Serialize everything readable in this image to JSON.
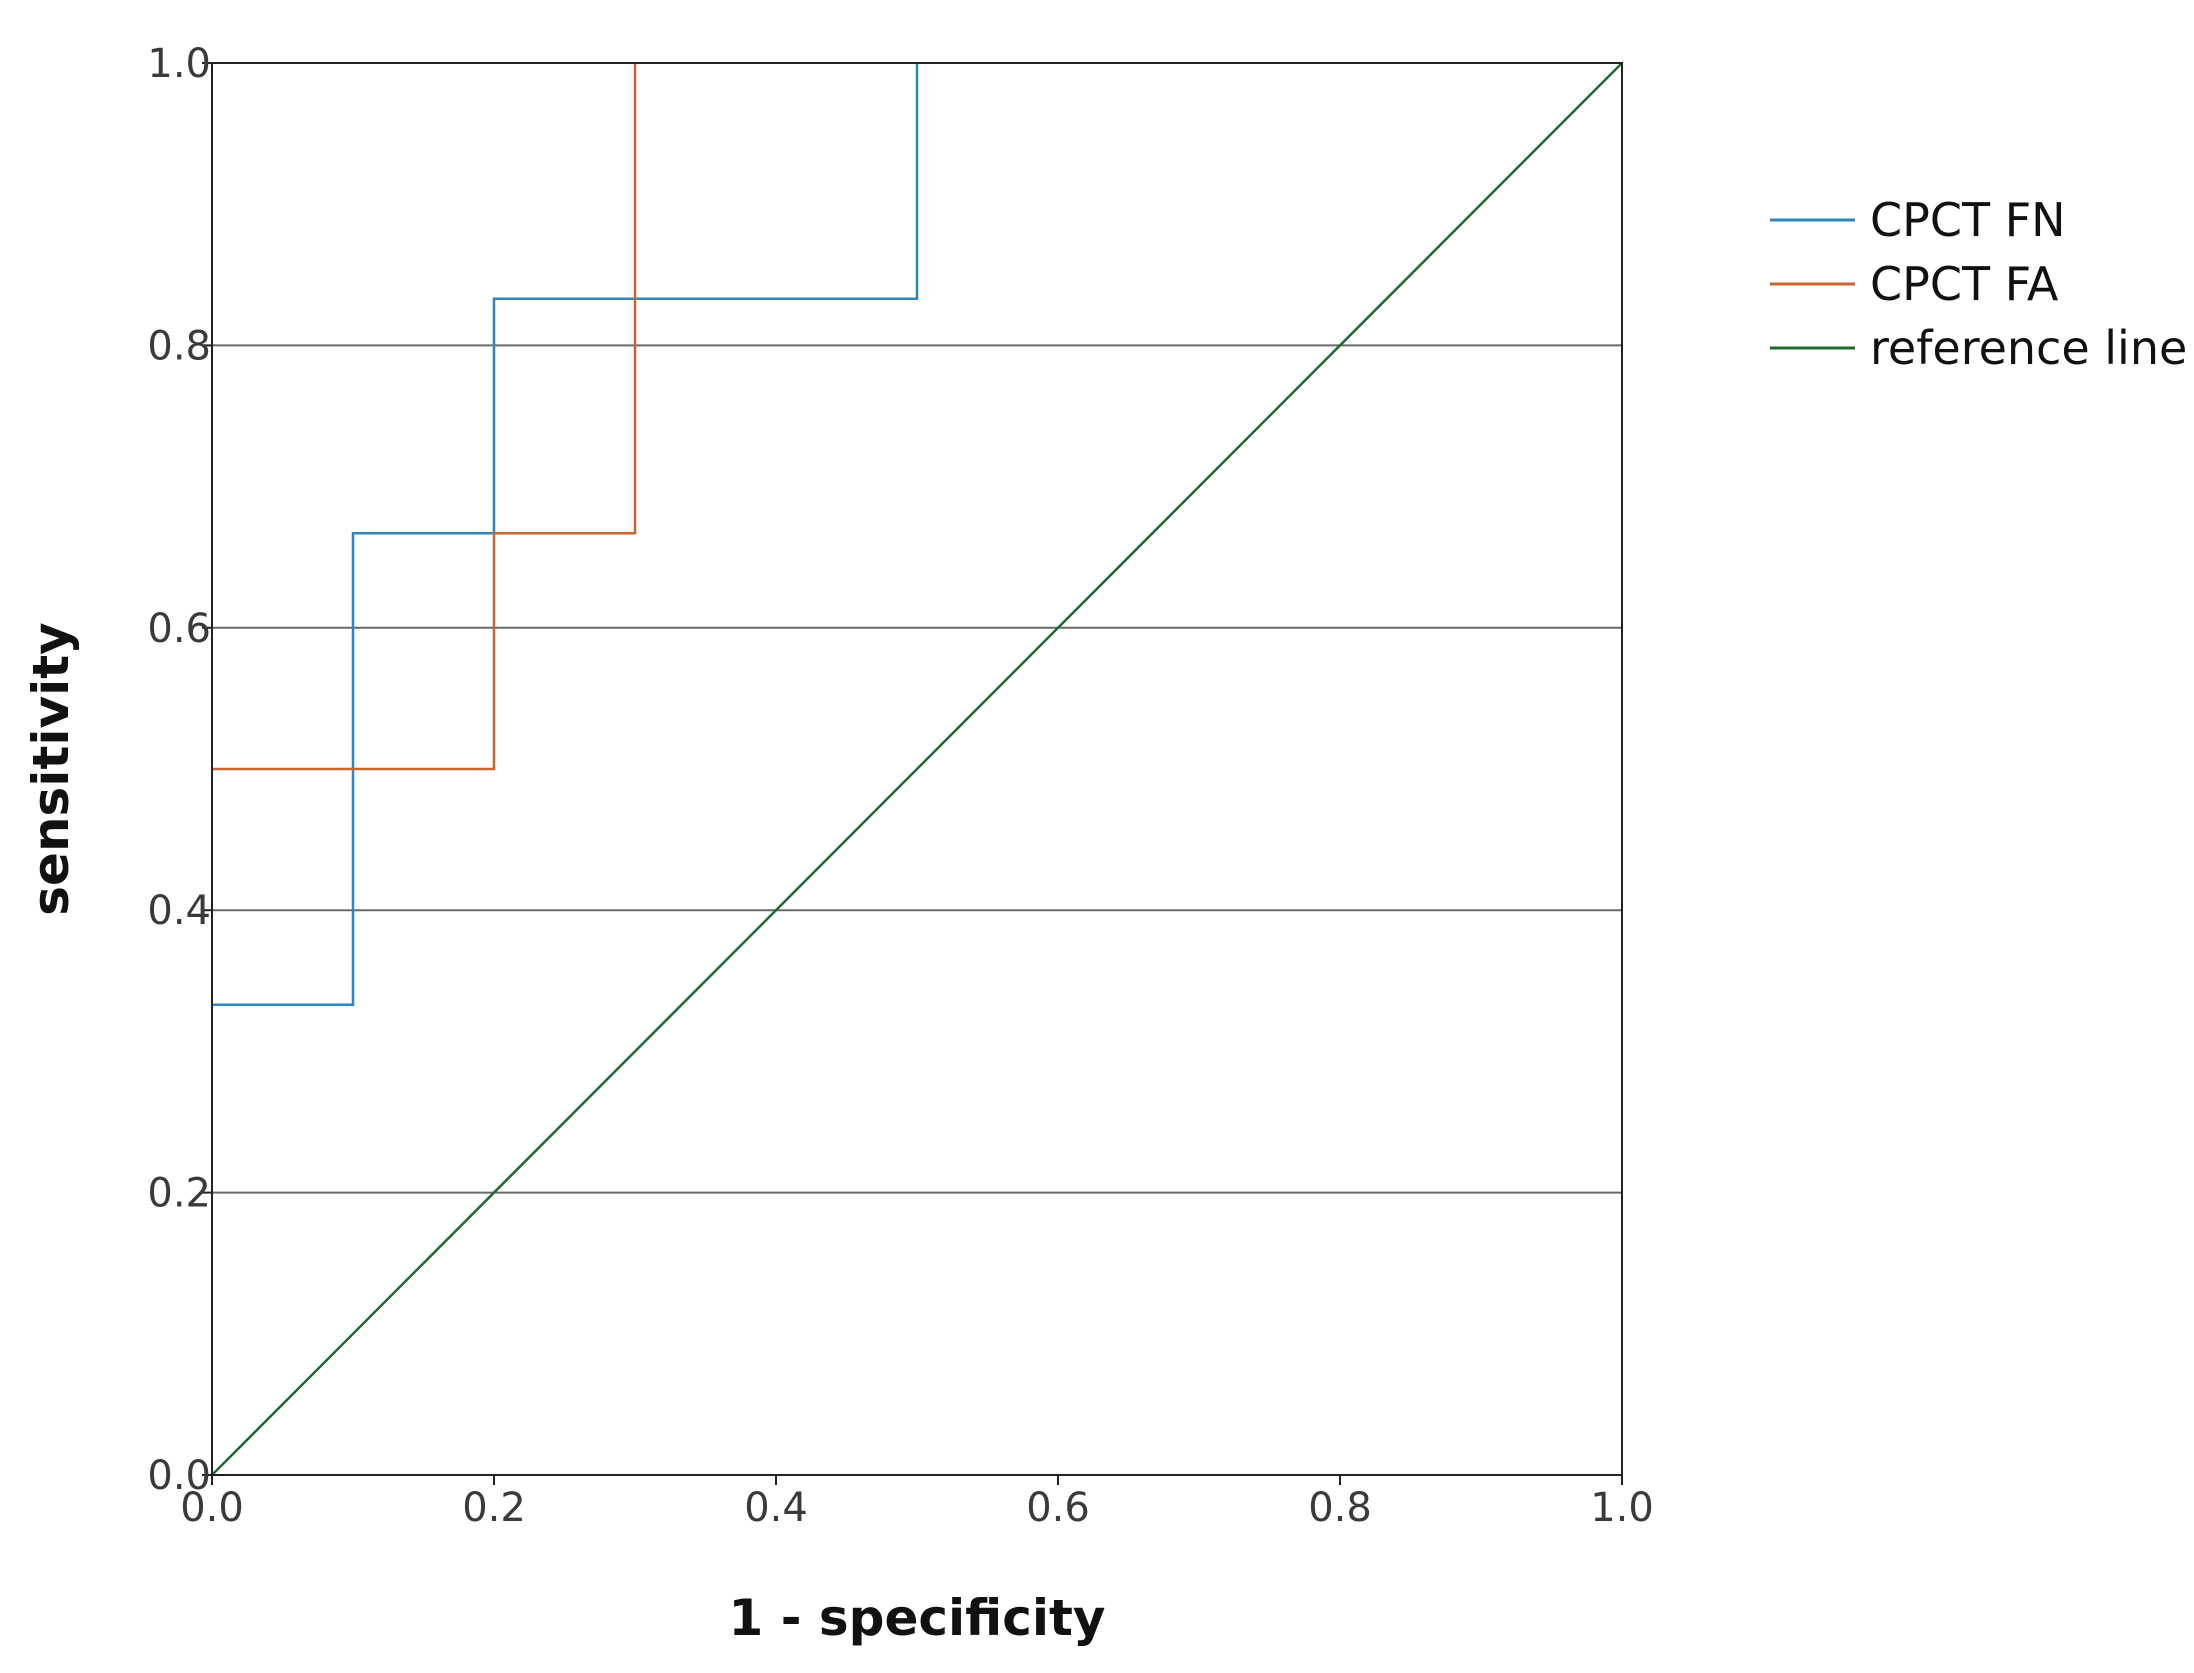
{
  "chart_data": {
    "type": "line",
    "xlabel": "1 - specificity",
    "ylabel": "sensitivity",
    "xlim": [
      0.0,
      1.0
    ],
    "ylim": [
      0.0,
      1.0
    ],
    "xticks": [
      "0.0",
      "0.2",
      "0.4",
      "0.6",
      "0.8",
      "1.0"
    ],
    "yticks": [
      "0.0",
      "0.2",
      "0.4",
      "0.6",
      "0.8",
      "1.0"
    ],
    "grid": "horizontal",
    "legend_position": "right",
    "series": [
      {
        "name": "CPCT FN",
        "color": "#2e86c1",
        "x": [
          0.0,
          0.1,
          0.1,
          0.2,
          0.2,
          0.5,
          0.5
        ],
        "y": [
          0.333,
          0.333,
          0.667,
          0.667,
          0.833,
          0.833,
          1.0
        ]
      },
      {
        "name": "CPCT FA",
        "color": "#c8662f",
        "x": [
          0.0,
          0.2,
          0.2,
          0.3,
          0.3
        ],
        "y": [
          0.5,
          0.5,
          0.667,
          0.667,
          1.0
        ]
      },
      {
        "name": "reference line",
        "color": "#1e6b2e",
        "x": [
          0.0,
          1.0
        ],
        "y": [
          0.0,
          1.0
        ]
      }
    ]
  }
}
